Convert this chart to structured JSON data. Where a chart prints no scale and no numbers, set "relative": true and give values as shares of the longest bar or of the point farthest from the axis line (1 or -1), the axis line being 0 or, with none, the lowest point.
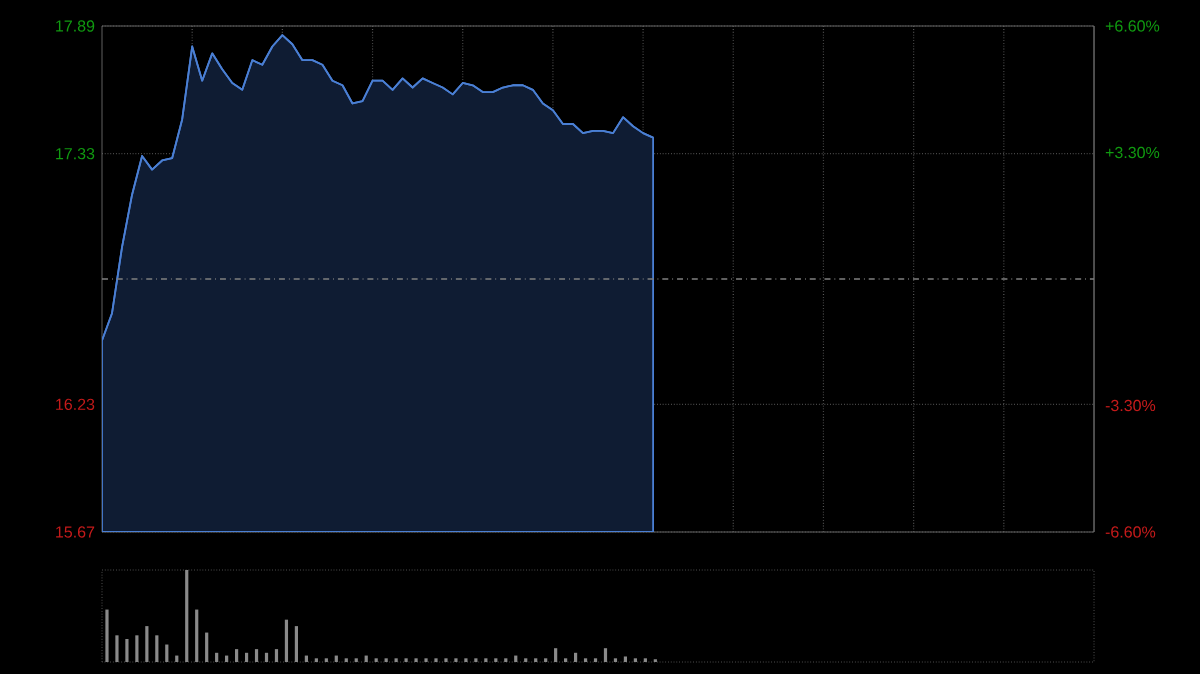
{
  "chart_data": [
    {
      "type": "area",
      "categories": [
        null,
        null,
        null,
        null,
        null,
        null,
        null,
        null,
        null,
        null,
        null,
        null,
        null,
        null,
        null,
        null,
        null,
        null,
        null,
        null,
        null,
        null,
        null,
        null,
        null,
        null,
        null,
        null,
        null,
        null,
        null,
        null,
        null,
        null,
        null,
        null,
        null,
        null,
        null,
        null,
        null,
        null,
        null,
        null,
        null,
        null,
        null,
        null,
        null,
        null,
        null,
        null,
        null,
        null,
        null,
        null,
        null,
        null,
        null,
        null,
        null,
        null,
        null,
        null,
        null,
        null,
        null,
        null,
        null,
        null,
        null,
        null,
        null,
        null,
        null,
        null,
        null,
        null,
        null,
        null,
        null,
        null,
        null,
        null,
        null,
        null,
        null,
        null,
        null,
        null,
        null,
        null,
        null,
        null,
        null,
        null,
        null,
        null,
        null,
        null
      ],
      "values": [
        16.51,
        16.63,
        16.92,
        17.15,
        17.32,
        17.26,
        17.3,
        17.31,
        17.48,
        17.8,
        17.65,
        17.77,
        17.7,
        17.64,
        17.61,
        17.74,
        17.72,
        17.8,
        17.85,
        17.81,
        17.74,
        17.74,
        17.72,
        17.65,
        17.63,
        17.55,
        17.56,
        17.65,
        17.65,
        17.61,
        17.66,
        17.62,
        17.66,
        17.64,
        17.62,
        17.59,
        17.64,
        17.63,
        17.6,
        17.6,
        17.62,
        17.63,
        17.63,
        17.61,
        17.55,
        17.52,
        17.46,
        17.46,
        17.42,
        17.43,
        17.43,
        17.42,
        17.49,
        17.45,
        17.42,
        17.4,
        null,
        null,
        null,
        null,
        null,
        null,
        null,
        null,
        null,
        null,
        null,
        null,
        null,
        null,
        null,
        null,
        null,
        null,
        null,
        null,
        null,
        null,
        null,
        null,
        null,
        null,
        null,
        null,
        null,
        null,
        null,
        null,
        null,
        null,
        null,
        null,
        null,
        null,
        null,
        null,
        null,
        null,
        null,
        null
      ],
      "color": "#4a7fd4",
      "ylim": [
        15.67,
        17.89
      ],
      "yticks": [
        15.67,
        16.23,
        17.33,
        17.89
      ],
      "y2lim": [
        -6.6,
        6.6
      ],
      "y2ticks": [
        {
          "value": -6.6,
          "label": "-6.60%"
        },
        {
          "value": -3.3,
          "label": "-3.30%"
        },
        {
          "value": 3.3,
          "label": "+3.30%"
        },
        {
          "value": 6.6,
          "label": "+6.60%"
        }
      ],
      "ref_lines": [
        {
          "axis": "y",
          "value": 16.78,
          "color": "#808080",
          "line_style": "dashed"
        }
      ],
      "grid": true,
      "tick_labels": "y"
    },
    {
      "type": "bar",
      "relative": true,
      "categories": [
        null,
        null,
        null,
        null,
        null,
        null,
        null,
        null,
        null,
        null,
        null,
        null,
        null,
        null,
        null,
        null,
        null,
        null,
        null,
        null,
        null,
        null,
        null,
        null,
        null,
        null,
        null,
        null,
        null,
        null,
        null,
        null,
        null,
        null,
        null,
        null,
        null,
        null,
        null,
        null,
        null,
        null,
        null,
        null,
        null,
        null,
        null,
        null,
        null,
        null,
        null,
        null,
        null,
        null,
        null,
        null,
        null,
        null,
        null,
        null,
        null,
        null,
        null,
        null,
        null,
        null,
        null,
        null,
        null,
        null,
        null,
        null,
        null,
        null,
        null,
        null,
        null,
        null,
        null,
        null,
        null,
        null,
        null,
        null,
        null,
        null,
        null,
        null,
        null,
        null,
        null,
        null,
        null,
        null,
        null,
        null,
        null,
        null,
        null,
        null
      ],
      "values": [
        0.57,
        0.29,
        0.25,
        0.29,
        0.39,
        0.29,
        0.19,
        0.07,
        1.0,
        0.57,
        0.32,
        0.1,
        0.07,
        0.14,
        0.1,
        0.14,
        0.1,
        0.14,
        0.46,
        0.39,
        0.07,
        0.04,
        0.04,
        0.07,
        0.04,
        0.04,
        0.07,
        0.04,
        0.04,
        0.04,
        0.04,
        0.04,
        0.04,
        0.04,
        0.04,
        0.04,
        0.04,
        0.04,
        0.04,
        0.04,
        0.04,
        0.07,
        0.04,
        0.04,
        0.04,
        0.15,
        0.04,
        0.1,
        0.04,
        0.04,
        0.15,
        0.04,
        0.06,
        0.04,
        0.04,
        0.03,
        null,
        null,
        null,
        null,
        null,
        null,
        null,
        null,
        null,
        null,
        null,
        null,
        null,
        null,
        null,
        null,
        null,
        null,
        null,
        null,
        null,
        null,
        null,
        null,
        null,
        null,
        null,
        null,
        null,
        null,
        null,
        null,
        null,
        null,
        null,
        null,
        null,
        null,
        null,
        null,
        null,
        null,
        null,
        null
      ],
      "color": "#8a8a8a"
    }
  ]
}
